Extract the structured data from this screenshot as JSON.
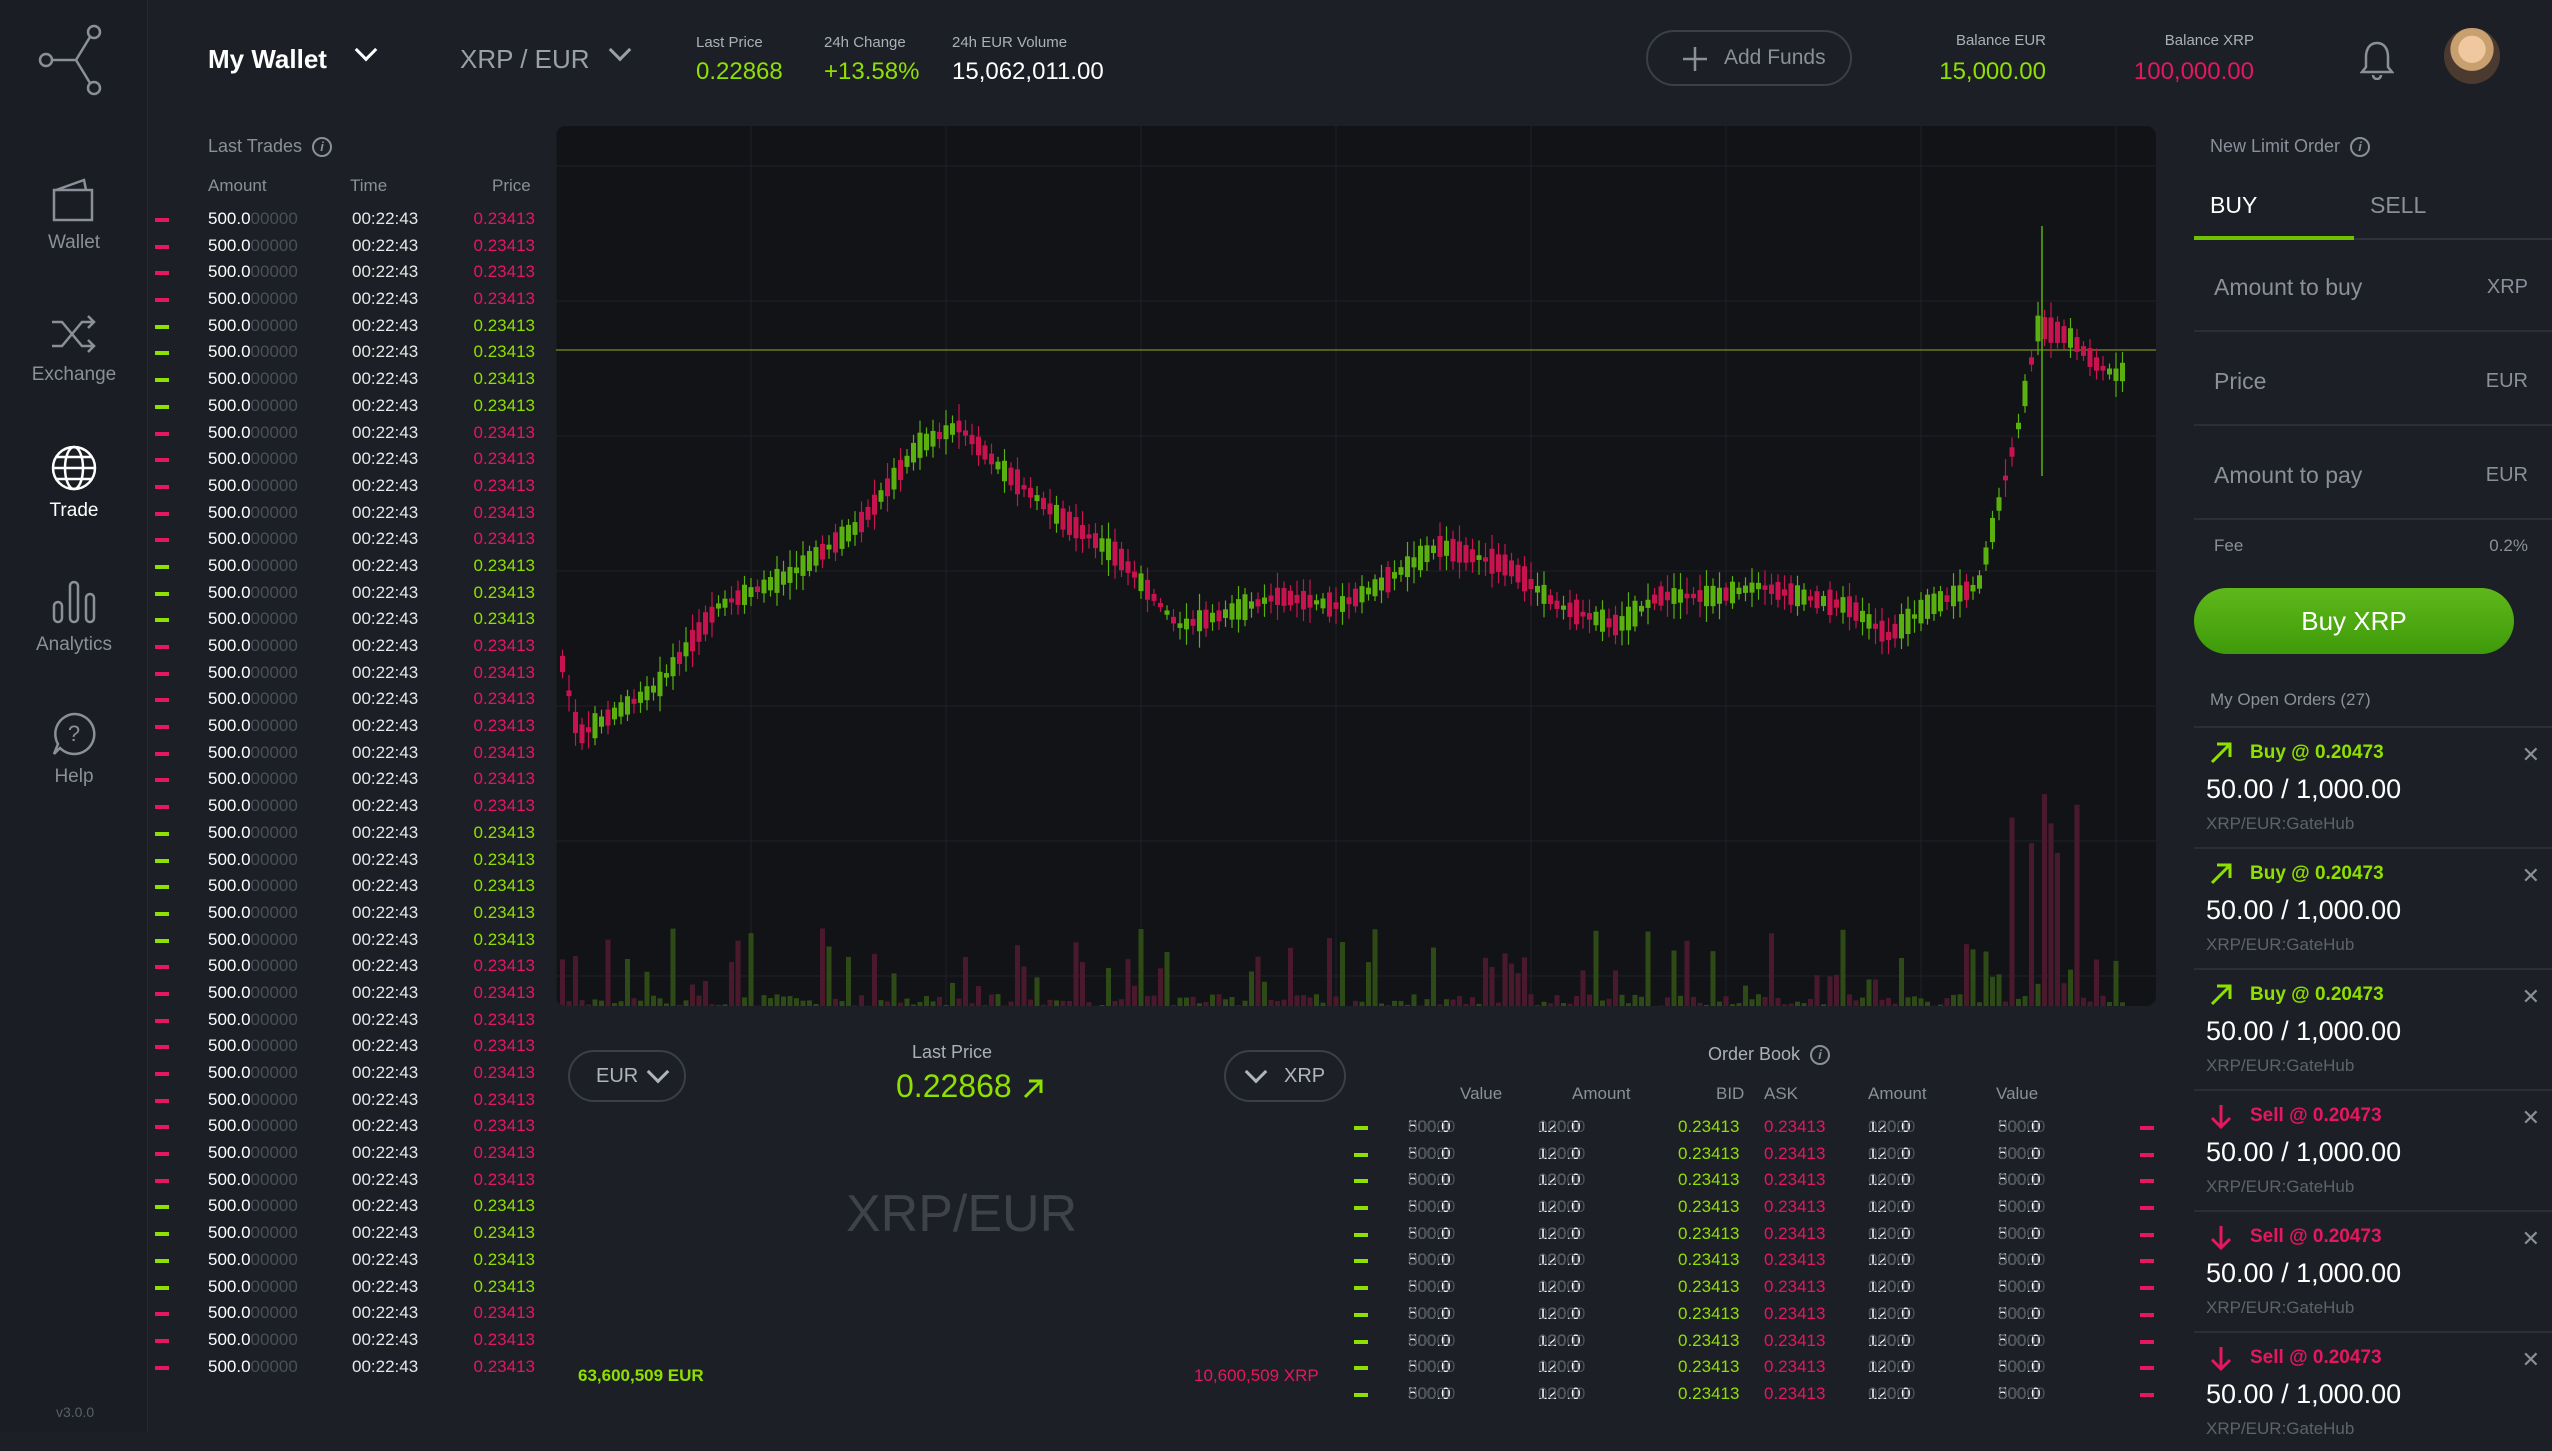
{
  "sidebar": {
    "items": [
      {
        "label": "Wallet",
        "icon": "wallet-icon"
      },
      {
        "label": "Exchange",
        "icon": "shuffle-icon"
      },
      {
        "label": "Trade",
        "icon": "globe-icon"
      },
      {
        "label": "Analytics",
        "icon": "bar-chart-icon"
      },
      {
        "label": "Help",
        "icon": "help-icon"
      }
    ],
    "active": "Trade",
    "version": "v3.0.0"
  },
  "header": {
    "wallet": "My Wallet",
    "pair": "XRP / EUR",
    "last_price_label": "Last Price",
    "last_price": "0.22868",
    "change_label": "24h Change",
    "change": "+13.58%",
    "volume_label": "24h EUR Volume",
    "volume": "15,062,011.00",
    "add_funds": "Add Funds",
    "balance_eur_label": "Balance EUR",
    "balance_eur": "15,000.00",
    "balance_xrp_label": "Balance XRP",
    "balance_xrp": "100,000.00"
  },
  "last_trades": {
    "title": "Last Trades",
    "columns": [
      "Amount",
      "Time",
      "Price"
    ],
    "amount": "500.0",
    "amount_fade": "00000",
    "time": "00:22:43",
    "price": "0.23413",
    "sides": [
      "sell",
      "sell",
      "sell",
      "sell",
      "buy",
      "buy",
      "buy",
      "buy",
      "sell",
      "sell",
      "sell",
      "sell",
      "sell",
      "buy",
      "buy",
      "buy",
      "sell",
      "sell",
      "sell",
      "sell",
      "sell",
      "sell",
      "sell",
      "buy",
      "buy",
      "buy",
      "buy",
      "buy",
      "sell",
      "sell",
      "sell",
      "sell",
      "sell",
      "sell",
      "sell",
      "sell",
      "sell",
      "buy",
      "buy",
      "buy",
      "buy",
      "sell",
      "sell",
      "sell"
    ]
  },
  "colors": {
    "buy": "#8ee000",
    "sell": "#e5175e",
    "background": "#1c1f26",
    "panel": "#111317"
  },
  "depth": {
    "left_currency": "EUR",
    "right_currency": "XRP",
    "last_price_label": "Last Price",
    "last_price": "0.22868",
    "watermark": "XRP/EUR",
    "bid_total": "63,600,509 EUR",
    "ask_total": "10,600,509 XRP"
  },
  "order_book": {
    "title": "Order Book",
    "columns": [
      "Value",
      "Amount",
      "BID",
      "ASK",
      "Amount",
      "Value"
    ],
    "value": "500.0",
    "amount": "120.0",
    "fade": "00000",
    "bid": "0.23413",
    "ask": "0.23413",
    "rows": 11
  },
  "order_form": {
    "title": "New Limit Order",
    "tabs": [
      "BUY",
      "SELL"
    ],
    "active_tab": "BUY",
    "fields": [
      {
        "placeholder": "Amount to buy",
        "unit": "XRP"
      },
      {
        "placeholder": "Price",
        "unit": "EUR"
      },
      {
        "placeholder": "Amount to pay",
        "unit": "EUR"
      }
    ],
    "fee_label": "Fee",
    "fee_value": "0.2%",
    "button": "Buy XRP"
  },
  "open_orders": {
    "title": "My Open Orders (27)",
    "items": [
      {
        "side": "buy",
        "title": "Buy @ 0.20473",
        "amount": "50.00 / 1,000.00",
        "market": "XRP/EUR:GateHub"
      },
      {
        "side": "buy",
        "title": "Buy @ 0.20473",
        "amount": "50.00 / 1,000.00",
        "market": "XRP/EUR:GateHub"
      },
      {
        "side": "buy",
        "title": "Buy @ 0.20473",
        "amount": "50.00 / 1,000.00",
        "market": "XRP/EUR:GateHub"
      },
      {
        "side": "sell",
        "title": "Sell @ 0.20473",
        "amount": "50.00 / 1,000.00",
        "market": "XRP/EUR:GateHub"
      },
      {
        "side": "sell",
        "title": "Sell @ 0.20473",
        "amount": "50.00 / 1,000.00",
        "market": "XRP/EUR:GateHub"
      },
      {
        "side": "sell",
        "title": "Sell @ 0.20473",
        "amount": "50.00 / 1,000.00",
        "market": "XRP/EUR:GateHub"
      }
    ]
  }
}
